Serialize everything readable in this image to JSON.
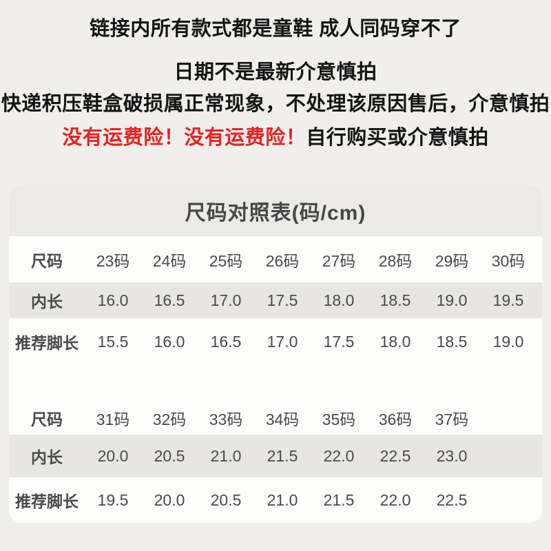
{
  "notices": {
    "line1": "链接内所有款式都是童鞋 成人同码穿不了",
    "line2": "日期不是最新介意慎拍",
    "line3": "快递积压鞋盒破损属正常现象，不处理该原因售后，介意慎拍",
    "line4_red": "没有运费险！没有运费险！",
    "line4_black": "自行购买或介意慎拍"
  },
  "size_chart": {
    "title": "尺码对照表(码/cm)",
    "tables": [
      {
        "rows": [
          {
            "label": "尺码",
            "values": [
              "23码",
              "24码",
              "25码",
              "26码",
              "27码",
              "28码",
              "29码",
              "30码"
            ]
          },
          {
            "label": "内长",
            "highlight": true,
            "values": [
              "16.0",
              "16.5",
              "17.0",
              "17.5",
              "18.0",
              "18.5",
              "19.0",
              "19.5"
            ]
          },
          {
            "label": "推荐脚长",
            "values": [
              "15.5",
              "16.0",
              "16.5",
              "17.0",
              "17.5",
              "18.0",
              "18.5",
              "19.0"
            ]
          }
        ]
      },
      {
        "rows": [
          {
            "label": "尺码",
            "values": [
              "31码",
              "32码",
              "33码",
              "34码",
              "35码",
              "36码",
              "37码"
            ]
          },
          {
            "label": "内长",
            "highlight": true,
            "values": [
              "20.0",
              "20.5",
              "21.0",
              "21.5",
              "22.0",
              "22.5",
              "23.0"
            ]
          },
          {
            "label": "推荐脚长",
            "values": [
              "19.5",
              "20.0",
              "20.5",
              "21.0",
              "21.5",
              "22.0",
              "22.5"
            ]
          }
        ]
      }
    ]
  },
  "colors": {
    "page_background": "#f0efec",
    "card_background": "#fdfdfc",
    "title_band": "#ebeae7",
    "stripe_row": "#e7e6e3",
    "table_text": "#4a4a4a",
    "notice_text": "#141414",
    "alert_red": "#f01f1f"
  }
}
